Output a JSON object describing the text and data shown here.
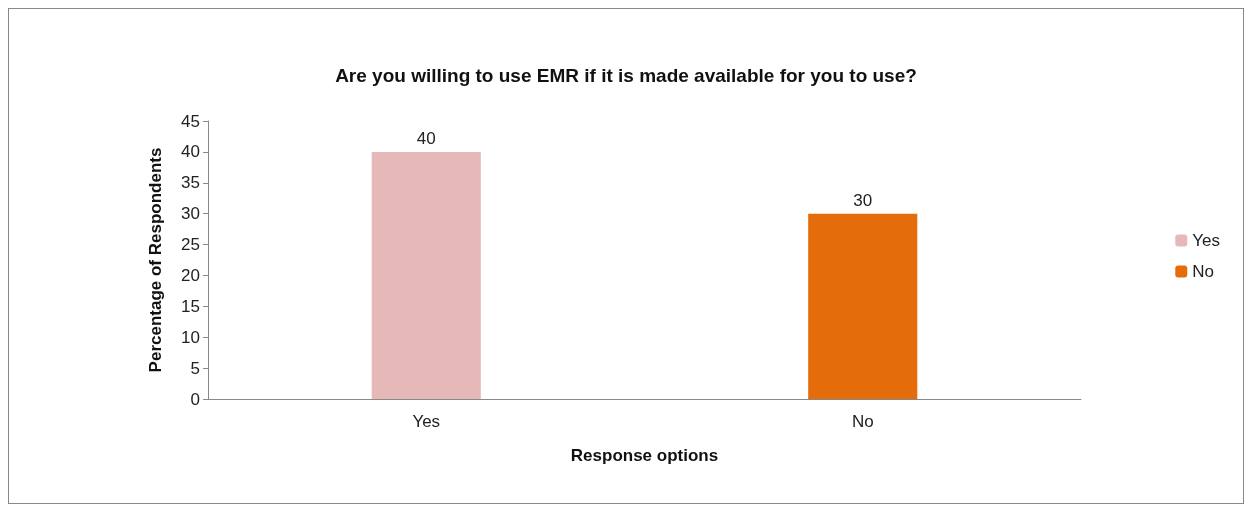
{
  "chart_data": {
    "type": "bar",
    "title": "Are you willing to use EMR if it is made available for you to use?",
    "xlabel": "Response options",
    "ylabel": "Percentage of Respondents",
    "categories": [
      "Yes",
      "No"
    ],
    "series": [
      {
        "name": "Yes",
        "color": "#e6b8b7",
        "values": [
          40,
          null
        ]
      },
      {
        "name": "No",
        "color": "#e46c0a",
        "values": [
          null,
          30
        ]
      }
    ],
    "ylim": [
      0,
      45
    ],
    "yticks": [
      0,
      5,
      10,
      15,
      20,
      25,
      30,
      35,
      40,
      45
    ],
    "grid": false,
    "legend": "right",
    "data_labels": true
  }
}
